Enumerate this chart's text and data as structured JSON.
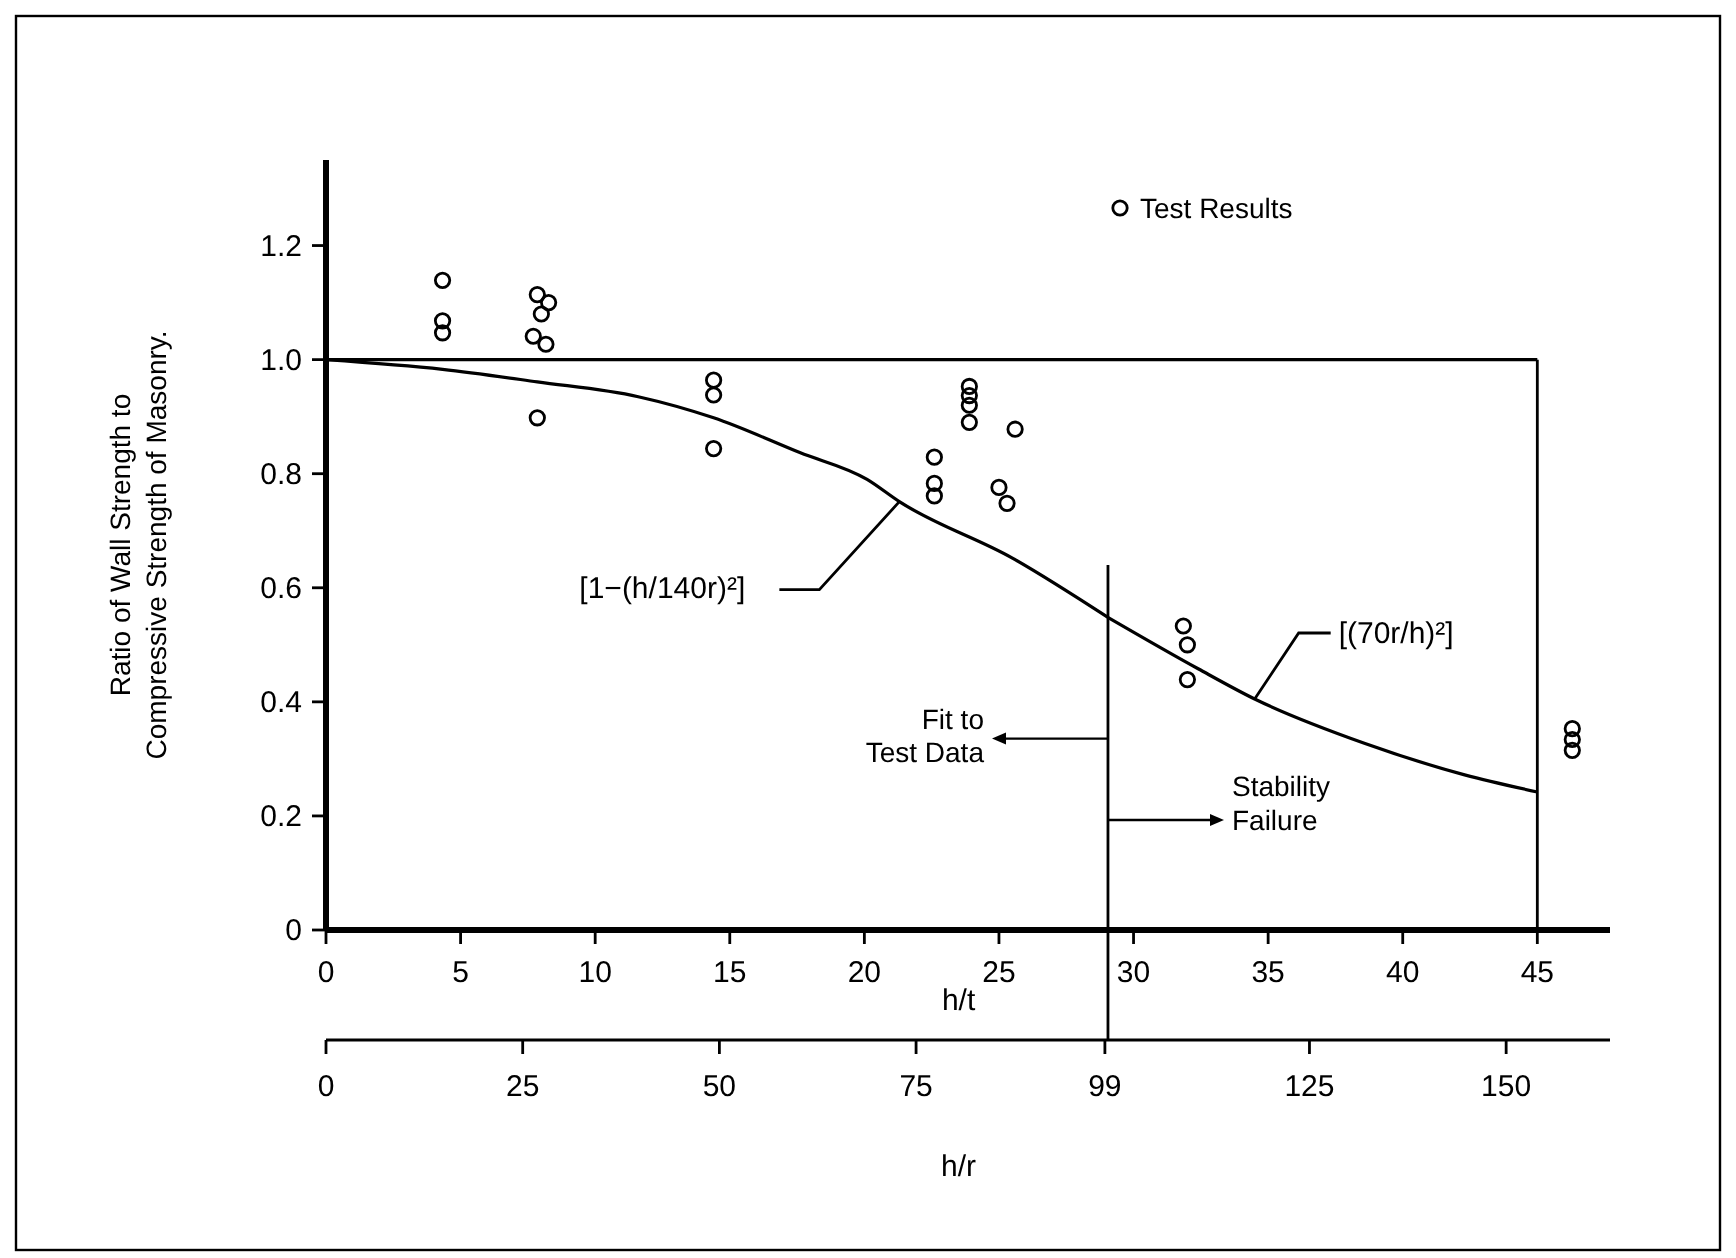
{
  "chart_data": {
    "type": "scatter",
    "xlabel": "h/t",
    "x2label": "h/r",
    "ylabel": "Ratio of Wall Strength to\nCompressive Strength of Masonry.",
    "xlim": [
      0,
      47.7
    ],
    "xticks": [
      0,
      5,
      10,
      15,
      20,
      25,
      30,
      35,
      40,
      45
    ],
    "x2lim": [
      0,
      163.2
    ],
    "x2ticks": [
      0,
      25,
      50,
      75,
      99,
      125,
      150
    ],
    "ylim": [
      0,
      1.35
    ],
    "yticks": [
      0,
      0.2,
      0.4,
      0.6,
      0.8,
      {
        "value": 1,
        "label": "1.0"
      },
      1.2
    ],
    "legend": "top right",
    "marker": "circle",
    "grid": false,
    "series": [
      {
        "name": "Test Results",
        "color": "#000000",
        "x": [
          4.33,
          4.33,
          4.33,
          7.85,
          8.27,
          8.0,
          7.7,
          8.17,
          7.85,
          14.4,
          14.4,
          14.4,
          23.9,
          23.9,
          23.9,
          23.9,
          25.6,
          22.6,
          22.6,
          22.6,
          25.0,
          25.3,
          31.85,
          32.0,
          32.0,
          46.3,
          46.3,
          46.3
        ],
        "values": [
          1.139,
          1.068,
          1.047,
          1.114,
          1.1,
          1.08,
          1.041,
          1.027,
          0.898,
          0.964,
          0.938,
          0.844,
          0.953,
          0.937,
          0.92,
          0.89,
          0.878,
          0.829,
          0.783,
          0.761,
          0.776,
          0.748,
          0.533,
          0.5,
          0.439,
          0.353,
          0.334,
          0.315
        ]
      },
      {
        "type": "line",
        "marker": "none",
        "color": "#000000",
        "x": [
          0,
          4.33,
          7.85,
          11.6,
          14.4,
          17.6,
          20.1,
          21.3,
          25.5,
          29.05
        ],
        "values": [
          1.0,
          0.983,
          0.961,
          0.935,
          0.898,
          0.837,
          0.79,
          0.751,
          0.652,
          0.548
        ]
      },
      {
        "type": "line",
        "marker": "none",
        "color": "#000000",
        "x": [
          29.05,
          32.4,
          34.5,
          38.6,
          42.3,
          45
        ],
        "values": [
          0.548,
          0.458,
          0.405,
          0.327,
          0.272,
          0.242
        ]
      }
    ],
    "ref_lines": [
      {
        "axis": "y",
        "value": 1.0,
        "color": "#000000"
      },
      {
        "axis": "x",
        "value": 29.05,
        "color": "#000000"
      },
      {
        "axis": "x",
        "value": 45,
        "color": "#000000"
      }
    ],
    "annotations": [
      {
        "text": "[1−(h/140r)²]",
        "x": 21.3,
        "y": 0.751
      },
      {
        "text": "[(70r/h)²]",
        "x": 34.5,
        "y": 0.405
      },
      "Fit to\nTest Data",
      "Stability\nFailure"
    ]
  }
}
